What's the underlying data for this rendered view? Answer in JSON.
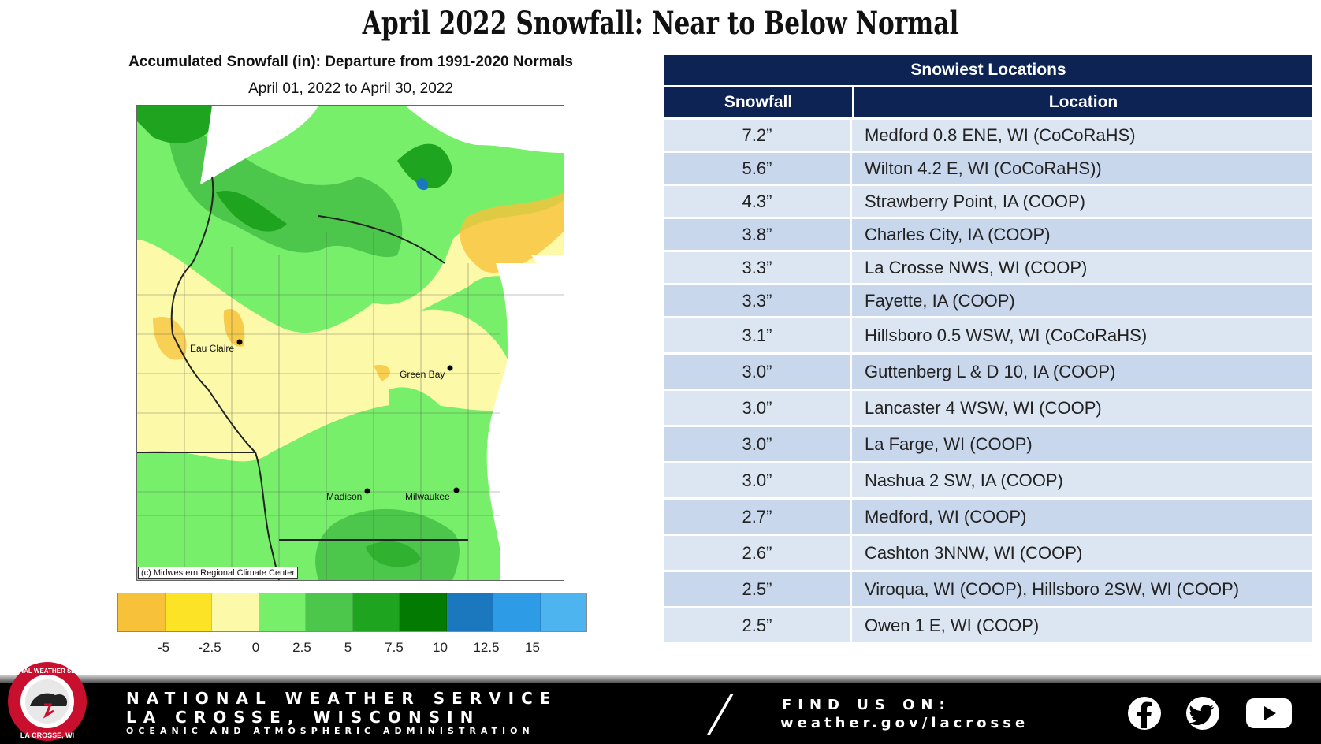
{
  "page_title": "April 2022 Snowfall:  Near to Below Normal",
  "map": {
    "title": "Accumulated Snowfall (in): Departure from 1991-2020 Normals",
    "date_range": "April 01, 2022 to April 30, 2022",
    "credit": "(c) Midwestern Regional Climate Center",
    "cities": [
      "Eau Claire",
      "Green Bay",
      "Madison",
      "Milwaukee"
    ]
  },
  "legend": {
    "colors": [
      "#f7c23a",
      "#fde326",
      "#fcfaa8",
      "#78ef6a",
      "#4dc64c",
      "#1ea41e",
      "#037b03",
      "#1b77be",
      "#2e9be6",
      "#4eb4f0"
    ],
    "ticks": [
      "-5",
      "-2.5",
      "0",
      "2.5",
      "5",
      "7.5",
      "10",
      "12.5",
      "15"
    ]
  },
  "table": {
    "title": "Snowiest Locations",
    "headers": [
      "Snowfall",
      "Location"
    ],
    "rows": [
      [
        "7.2”",
        "Medford 0.8 ENE, WI (CoCoRaHS)"
      ],
      [
        "5.6”",
        "Wilton 4.2 E, WI (CoCoRaHS))"
      ],
      [
        "4.3”",
        "Strawberry Point, IA (COOP)"
      ],
      [
        "3.8”",
        "Charles City, IA (COOP)"
      ],
      [
        "3.3”",
        "La Crosse NWS, WI (COOP)"
      ],
      [
        "3.3”",
        "Fayette, IA (COOP)"
      ],
      [
        "3.1”",
        "Hillsboro 0.5 WSW, WI (CoCoRaHS)"
      ],
      [
        "3.0”",
        "Guttenberg L & D 10, IA (COOP)"
      ],
      [
        "3.0”",
        "Lancaster 4 WSW, WI (COOP)"
      ],
      [
        "3.0”",
        "La Farge, WI (COOP)"
      ],
      [
        "3.0”",
        "Nashua 2 SW, IA (COOP)"
      ],
      [
        "2.7”",
        "Medford, WI (COOP)"
      ],
      [
        "2.6”",
        "Cashton 3NNW, WI (COOP)"
      ],
      [
        "2.5”",
        "Viroqua, WI (COOP), Hillsboro 2SW, WI (COOP)"
      ],
      [
        "2.5”",
        "Owen 1 E, WI (COOP)"
      ]
    ],
    "row_colors": [
      "#dce6f2",
      "#c9d7ec"
    ]
  },
  "footer": {
    "org_line1": "NATIONAL WEATHER SERVICE",
    "org_line2": "LA CROSSE, WISCONSIN",
    "org_line3": "OCEANIC AND ATMOSPHERIC ADMINISTRATION",
    "find_label": "FIND US ON:",
    "url": "weather.gov/lacrosse",
    "logo_top": "NATIONAL WEATHER SERVICE",
    "logo_bottom": "LA CROSSE, WI",
    "social": [
      "facebook-icon",
      "twitter-icon",
      "youtube-icon"
    ]
  }
}
